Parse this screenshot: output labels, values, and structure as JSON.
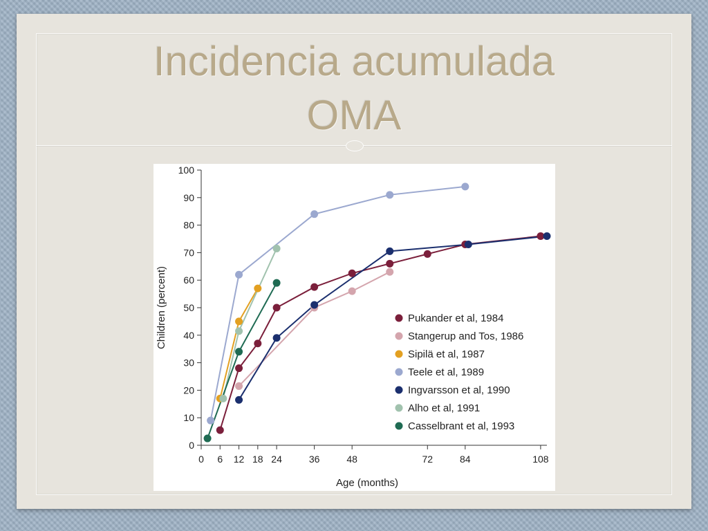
{
  "slide": {
    "title_line1": "Incidencia acumulada",
    "title_line2": "OMA"
  },
  "chart_data": {
    "type": "line",
    "title": "",
    "xlabel": "Age (months)",
    "ylabel": "Children (percent)",
    "xlim": [
      0,
      110
    ],
    "ylim": [
      0,
      100
    ],
    "xticks": [
      0,
      6,
      12,
      18,
      24,
      36,
      48,
      72,
      84,
      108
    ],
    "yticks": [
      0,
      10,
      20,
      30,
      40,
      50,
      60,
      70,
      80,
      90,
      100
    ],
    "grid": false,
    "legend_position": "bottom-right",
    "series": [
      {
        "name": "Pukander et al, 1984",
        "color": "#7b1f3b",
        "points": [
          [
            6,
            5.5
          ],
          [
            12,
            28
          ],
          [
            18,
            37
          ],
          [
            24,
            50
          ],
          [
            36,
            57.5
          ],
          [
            48,
            62.5
          ],
          [
            60,
            66
          ],
          [
            72,
            69.5
          ],
          [
            84,
            73
          ],
          [
            108,
            76
          ]
        ]
      },
      {
        "name": "Stangerup and Tos, 1986",
        "color": "#d4a5ad",
        "points": [
          [
            12,
            21.5
          ],
          [
            36,
            50
          ],
          [
            48,
            56
          ],
          [
            60,
            63
          ]
        ]
      },
      {
        "name": "Sipilä et al, 1987",
        "color": "#e3a021",
        "points": [
          [
            6,
            17
          ],
          [
            12,
            45
          ],
          [
            18,
            57
          ]
        ]
      },
      {
        "name": "Teele et al, 1989",
        "color": "#9ba8cf",
        "points": [
          [
            3,
            9
          ],
          [
            12,
            62
          ],
          [
            36,
            84
          ],
          [
            60,
            91
          ],
          [
            84,
            94
          ]
        ]
      },
      {
        "name": "Ingvarsson et al, 1990",
        "color": "#1b2f6e",
        "points": [
          [
            12,
            16.5
          ],
          [
            24,
            39
          ],
          [
            36,
            51
          ],
          [
            60,
            70.5
          ],
          [
            85,
            73
          ],
          [
            110,
            76
          ]
        ]
      },
      {
        "name": "Alho et al, 1991",
        "color": "#a1c2ae",
        "points": [
          [
            7,
            17
          ],
          [
            12,
            41.5
          ],
          [
            24,
            71.5
          ]
        ]
      },
      {
        "name": "Casselbrant et al, 1993",
        "color": "#1f6b53",
        "points": [
          [
            2,
            2.5
          ],
          [
            12,
            34
          ],
          [
            24,
            59
          ]
        ]
      }
    ]
  }
}
